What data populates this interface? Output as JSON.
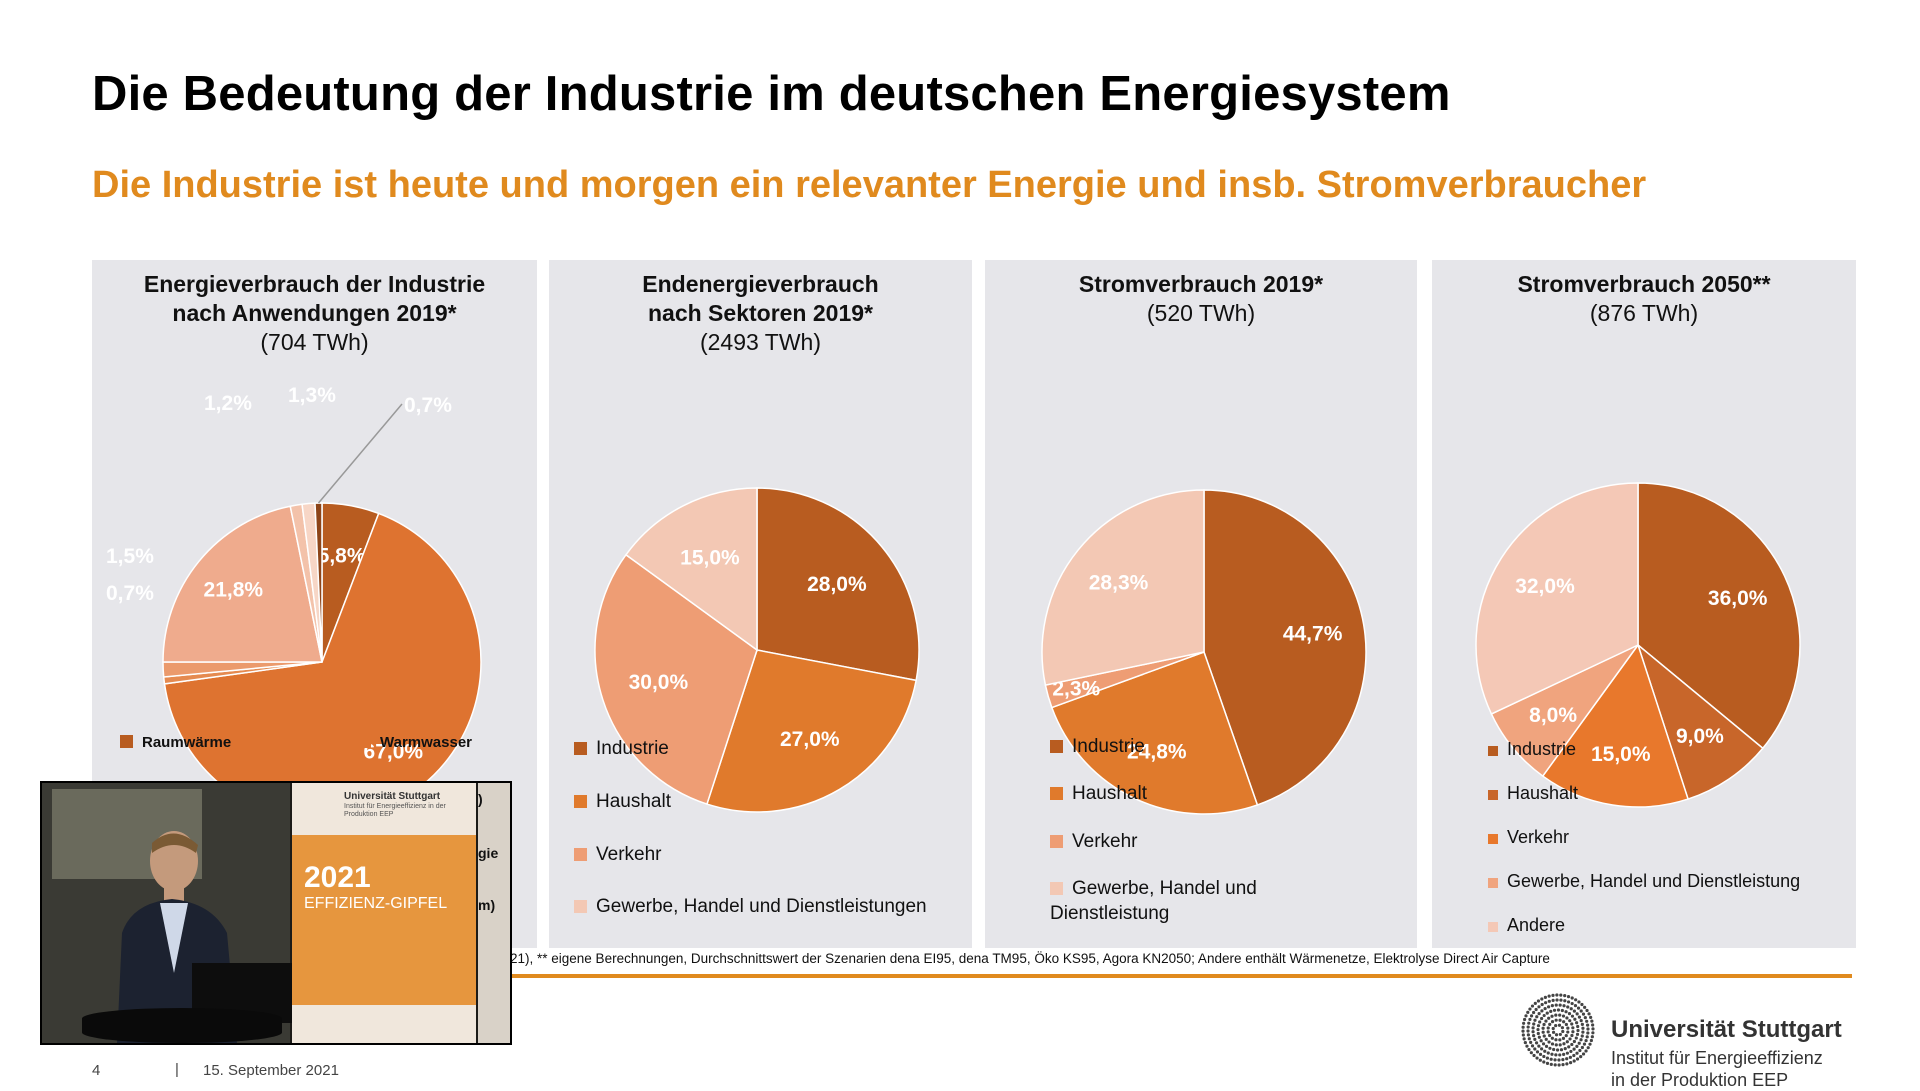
{
  "header": {
    "title": "Die Bedeutung der Industrie im deutschen Energiesystem",
    "subtitle": "Die Industrie ist heute und morgen ein relevanter Energie und insb. Stromverbraucher"
  },
  "panels": [
    {
      "title_line1": "Energieverbrauch der Industrie",
      "title_line2": "nach Anwendungen 2019*",
      "total": "(704 TWh)",
      "legend_visible": [
        "Raumwärme",
        "Warmwasser"
      ]
    },
    {
      "title_line1": "Endenergieverbrauch",
      "title_line2": "nach Sektoren 2019*",
      "total": "(2493 TWh)",
      "legend": [
        "Industrie",
        "Haushalt",
        "Verkehr",
        "Gewerbe, Handel und Dienstleistungen"
      ]
    },
    {
      "title_line1": "Stromverbrauch 2019*",
      "total": "(520 TWh)",
      "legend": [
        "Industrie",
        "Haushalt",
        "Verkehr",
        "Gewerbe, Handel und Dienstleistung"
      ]
    },
    {
      "title_line1": "Stromverbrauch 2050**",
      "total": "(876 TWh)",
      "legend": [
        "Industrie",
        "Haushalt",
        "Verkehr",
        "Gewerbe, Handel und Dienstleistung",
        "Andere"
      ]
    }
  ],
  "chart_data": [
    {
      "type": "pie",
      "title": "Energieverbrauch der Industrie nach Anwendungen 2019* (704 TWh)",
      "slices": [
        {
          "label": "Raumwärme",
          "value": 5.8,
          "text": "5,8%",
          "color": "#b85c20"
        },
        {
          "label": "",
          "value": 67.0,
          "text": "67,0%",
          "color": "#de7330"
        },
        {
          "label": "",
          "value": 0.7,
          "text": "0,7%",
          "color": "#e58a50"
        },
        {
          "label": "",
          "value": 1.5,
          "text": "1,5%",
          "color": "#eb9a6c"
        },
        {
          "label": "",
          "value": 21.8,
          "text": "21,8%",
          "color": "#efab8d"
        },
        {
          "label": "",
          "value": 1.2,
          "text": "1,2%",
          "color": "#f3c2aa"
        },
        {
          "label": "Warmwasser",
          "value": 1.3,
          "text": "1,3%",
          "color": "#f7d6c6"
        },
        {
          "label": "",
          "value": 0.7,
          "text": "0,7%",
          "color": "#8d4418"
        }
      ]
    },
    {
      "type": "pie",
      "title": "Endenergieverbrauch nach Sektoren 2019* (2493 TWh)",
      "slices": [
        {
          "label": "Industrie",
          "value": 28.0,
          "text": "28,0%",
          "color": "#b85c20"
        },
        {
          "label": "Haushalt",
          "value": 27.0,
          "text": "27,0%",
          "color": "#e07a2c"
        },
        {
          "label": "Verkehr",
          "value": 30.0,
          "text": "30,0%",
          "color": "#ee9d74"
        },
        {
          "label": "Gewerbe, Handel und Dienstleistungen",
          "value": 15.0,
          "text": "15,0%",
          "color": "#f3c8b4"
        }
      ]
    },
    {
      "type": "pie",
      "title": "Stromverbrauch 2019* (520 TWh)",
      "slices": [
        {
          "label": "Industrie",
          "value": 44.7,
          "text": "44,7%",
          "color": "#b85c20"
        },
        {
          "label": "Haushalt",
          "value": 24.8,
          "text": "24,8%",
          "color": "#e07a2c"
        },
        {
          "label": "Verkehr",
          "value": 2.3,
          "text": "2,3%",
          "color": "#ee9d74"
        },
        {
          "label": "Gewerbe, Handel und Dienstleistung",
          "value": 28.3,
          "text": "28,3%",
          "color": "#f3c8b4"
        }
      ]
    },
    {
      "type": "pie",
      "title": "Stromverbrauch 2050** (876 TWh)",
      "slices": [
        {
          "label": "Industrie",
          "value": 36.0,
          "text": "36,0%",
          "color": "#b85c20"
        },
        {
          "label": "Haushalt",
          "value": 9.0,
          "text": "9,0%",
          "color": "#c8662a"
        },
        {
          "label": "Verkehr",
          "value": 15.0,
          "text": "15,0%",
          "color": "#e8782c"
        },
        {
          "label": "Gewerbe, Handel und Dienstleistung",
          "value": 8.0,
          "text": "8,0%",
          "color": "#f0a47e"
        },
        {
          "label": "Andere",
          "value": 32.0,
          "text": "32,0%",
          "color": "#f4c8b6"
        }
      ]
    }
  ],
  "footnote": "21), ** eigene Berechnungen, Durchschnittswert der Szenarien  dena EI95, dena TM95, Öko KS95, Agora KN2050;  Andere enthält  Wärmenetze, Elektrolyse Direct Air Capture",
  "footer": {
    "page": "4",
    "separator": "|",
    "date": "15. September 2021",
    "university": "Universität Stuttgart",
    "institute_line1": "Institut für Energieeffizienz",
    "institute_line2": "in der Produktion EEP"
  },
  "video": {
    "year": "2021",
    "event": "EFFIZIENZ-GIPFEL",
    "banner_university": "Universität Stuttgart",
    "banner_institute": "Institut für Energieeffizienz in der Produktion EEP",
    "cut_text": [
      ")",
      "gie",
      "m)"
    ]
  }
}
